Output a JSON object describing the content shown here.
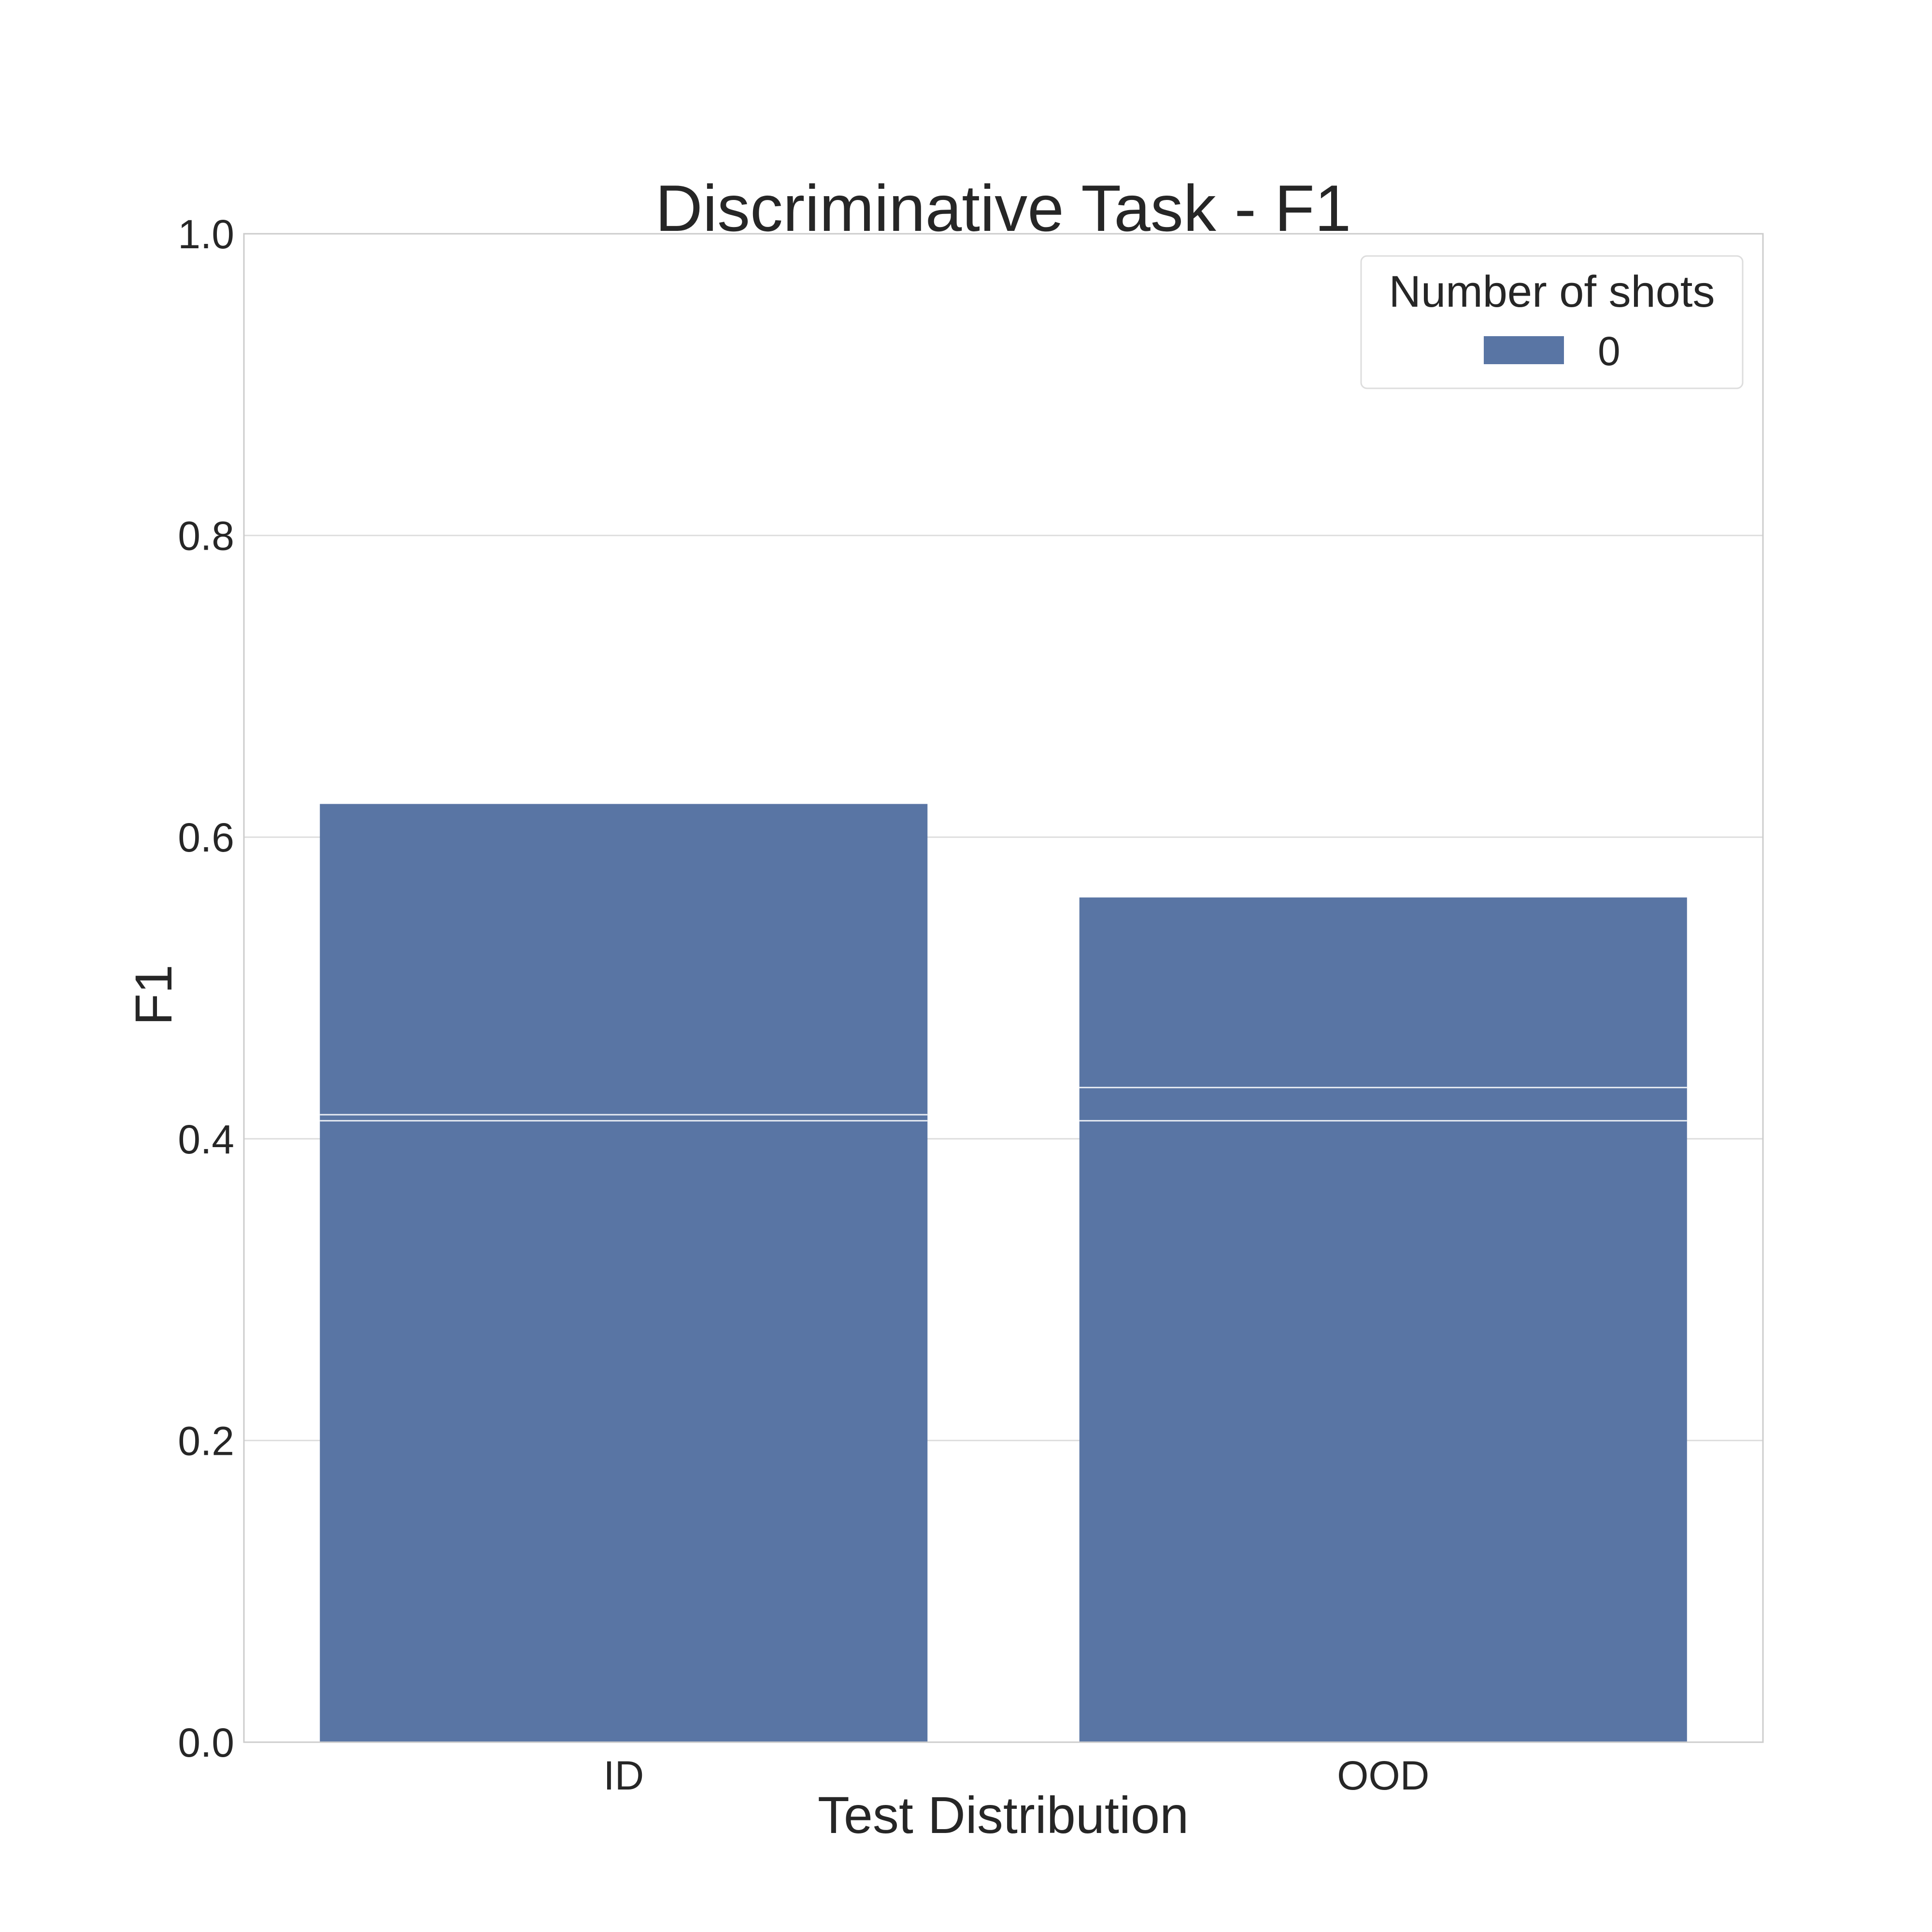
{
  "chart_data": {
    "type": "bar",
    "title": "Discriminative Task - F1",
    "xlabel": "Test Distribution",
    "ylabel": "F1",
    "categories": [
      "ID",
      "OOD"
    ],
    "ylim": [
      0,
      1.0
    ],
    "yticks": [
      "0.0",
      "0.2",
      "0.4",
      "0.6",
      "0.8",
      "1.0"
    ],
    "grid": true,
    "legend": {
      "title": "Number of shots",
      "placement": "top-right",
      "entries": [
        "0"
      ]
    },
    "series": [
      {
        "name": "0",
        "color": "#5975a4",
        "values": [
          0.622,
          0.56
        ],
        "stacked_segments": [
          [
            0.412,
            0.416,
            0.622
          ],
          [
            0.412,
            0.434,
            0.56
          ]
        ]
      }
    ]
  }
}
